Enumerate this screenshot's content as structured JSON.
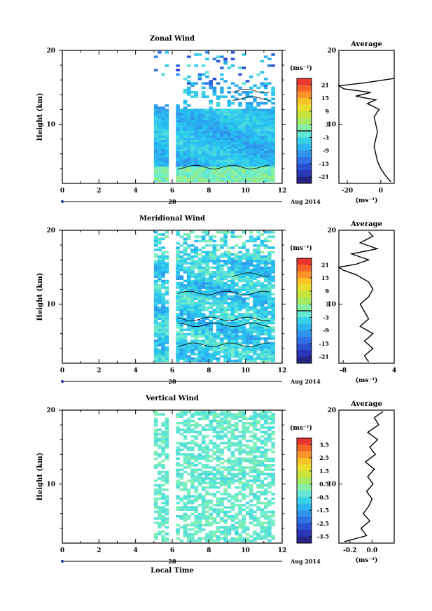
{
  "chart_data": [
    {
      "type": "heatmap",
      "title": "Zonal Wind",
      "ylabel": "Height (km)",
      "xlim": [
        0,
        12
      ],
      "ylim": [
        2,
        20
      ],
      "x_ticks": [
        "0",
        "2",
        "4",
        "6",
        "8",
        "10",
        "12"
      ],
      "y_ticks": [
        "20",
        "10"
      ],
      "date_marker": "28",
      "date_label": "Aug 2014",
      "data_time_range": [
        5,
        11.5
      ],
      "data_gap_range": [
        5.8,
        6.1
      ],
      "colorbar": {
        "unit": "(ms⁻¹)",
        "ticks": [
          "21",
          "15",
          "9",
          "3",
          "-3",
          "-9",
          "-15",
          "-21"
        ],
        "range": [
          -24,
          24
        ],
        "zero_line": 0
      },
      "profile": {
        "title": "Average",
        "xlim": [
          -25,
          8
        ],
        "x_ticks": [
          "-20",
          "0"
        ],
        "xlabel": "(ms⁻¹)",
        "y_ticks": [
          "20",
          "10"
        ],
        "heights": [
          2.2,
          3,
          4,
          5,
          6,
          7,
          8,
          9,
          10,
          11,
          12,
          12.8,
          13.3,
          13.8,
          14.3,
          14.8,
          15.2,
          15.6,
          16.2
        ],
        "values": [
          6,
          3,
          0,
          -2,
          -3,
          -4,
          -3,
          -2,
          -3,
          -4,
          -1,
          -8,
          -3,
          -15,
          -6,
          -22,
          -25,
          -10,
          8
        ]
      }
    },
    {
      "type": "heatmap",
      "title": "Meridional Wind",
      "ylabel": "Height (km)",
      "xlim": [
        0,
        12
      ],
      "ylim": [
        2,
        20
      ],
      "x_ticks": [
        "0",
        "2",
        "4",
        "6",
        "8",
        "10",
        "12"
      ],
      "y_ticks": [
        "20",
        "10"
      ],
      "date_marker": "28",
      "date_label": "Aug 2014",
      "data_time_range": [
        5,
        11.5
      ],
      "data_gap_range": [
        5.8,
        6.1
      ],
      "colorbar": {
        "unit": "(ms⁻¹)",
        "ticks": [
          "21",
          "15",
          "9",
          "3",
          "-3",
          "-9",
          "-15",
          "-21"
        ],
        "range": [
          -24,
          24
        ],
        "zero_line": 0
      },
      "profile": {
        "title": "Average",
        "xlim": [
          -9,
          4
        ],
        "x_ticks": [
          "-8",
          "4"
        ],
        "xlabel": "(ms⁻¹)",
        "y_ticks": [
          "20",
          "10"
        ],
        "heights": [
          2.2,
          3,
          4,
          5,
          6,
          7,
          8,
          9,
          10,
          11,
          12,
          13,
          14,
          14.6,
          15,
          15.4,
          16,
          16.8,
          17.5,
          18.3,
          19.2,
          19.8
        ],
        "values": [
          -2,
          -3,
          -1,
          -3,
          -1,
          -4,
          -2,
          -3,
          -4,
          -2,
          -1,
          -2,
          -5,
          -8,
          -9,
          -5,
          -2,
          -6,
          0,
          -4,
          -1,
          -2
        ]
      }
    },
    {
      "type": "heatmap",
      "title": "Vertical Wind",
      "ylabel": "Height (km)",
      "xlabel": "Local Time",
      "xlim": [
        0,
        12
      ],
      "ylim": [
        2,
        20
      ],
      "x_ticks": [
        "0",
        "2",
        "4",
        "6",
        "8",
        "10",
        "12"
      ],
      "y_ticks": [
        "20",
        "10"
      ],
      "date_marker": "28",
      "date_label": "Aug 2014",
      "data_time_range": [
        5,
        11.5
      ],
      "data_gap_range": [
        5.8,
        6.1
      ],
      "colorbar": {
        "unit": "(ms⁻¹)",
        "ticks": [
          "3.5",
          "2.5",
          "1.5",
          "0.5",
          "-0.5",
          "-1.5",
          "-2.5",
          "-3.5"
        ],
        "range": [
          -4,
          4
        ]
      },
      "profile": {
        "title": "Average",
        "xlim": [
          -0.3,
          0.2
        ],
        "x_ticks": [
          "-0.2",
          "0.0"
        ],
        "xlabel": "(ms⁻¹)",
        "y_ticks": [
          "20",
          "10"
        ],
        "heights": [
          2.2,
          3,
          4,
          5,
          6,
          7,
          8,
          9,
          10,
          11,
          12,
          13,
          14,
          15,
          16,
          17,
          18,
          19,
          19.8
        ],
        "values": [
          -0.25,
          -0.05,
          -0.1,
          -0.02,
          -0.08,
          -0.03,
          0.0,
          -0.05,
          0.01,
          -0.04,
          0.02,
          -0.06,
          0.03,
          -0.02,
          0.05,
          -0.04,
          0.06,
          0.02,
          0.1
        ]
      }
    }
  ]
}
